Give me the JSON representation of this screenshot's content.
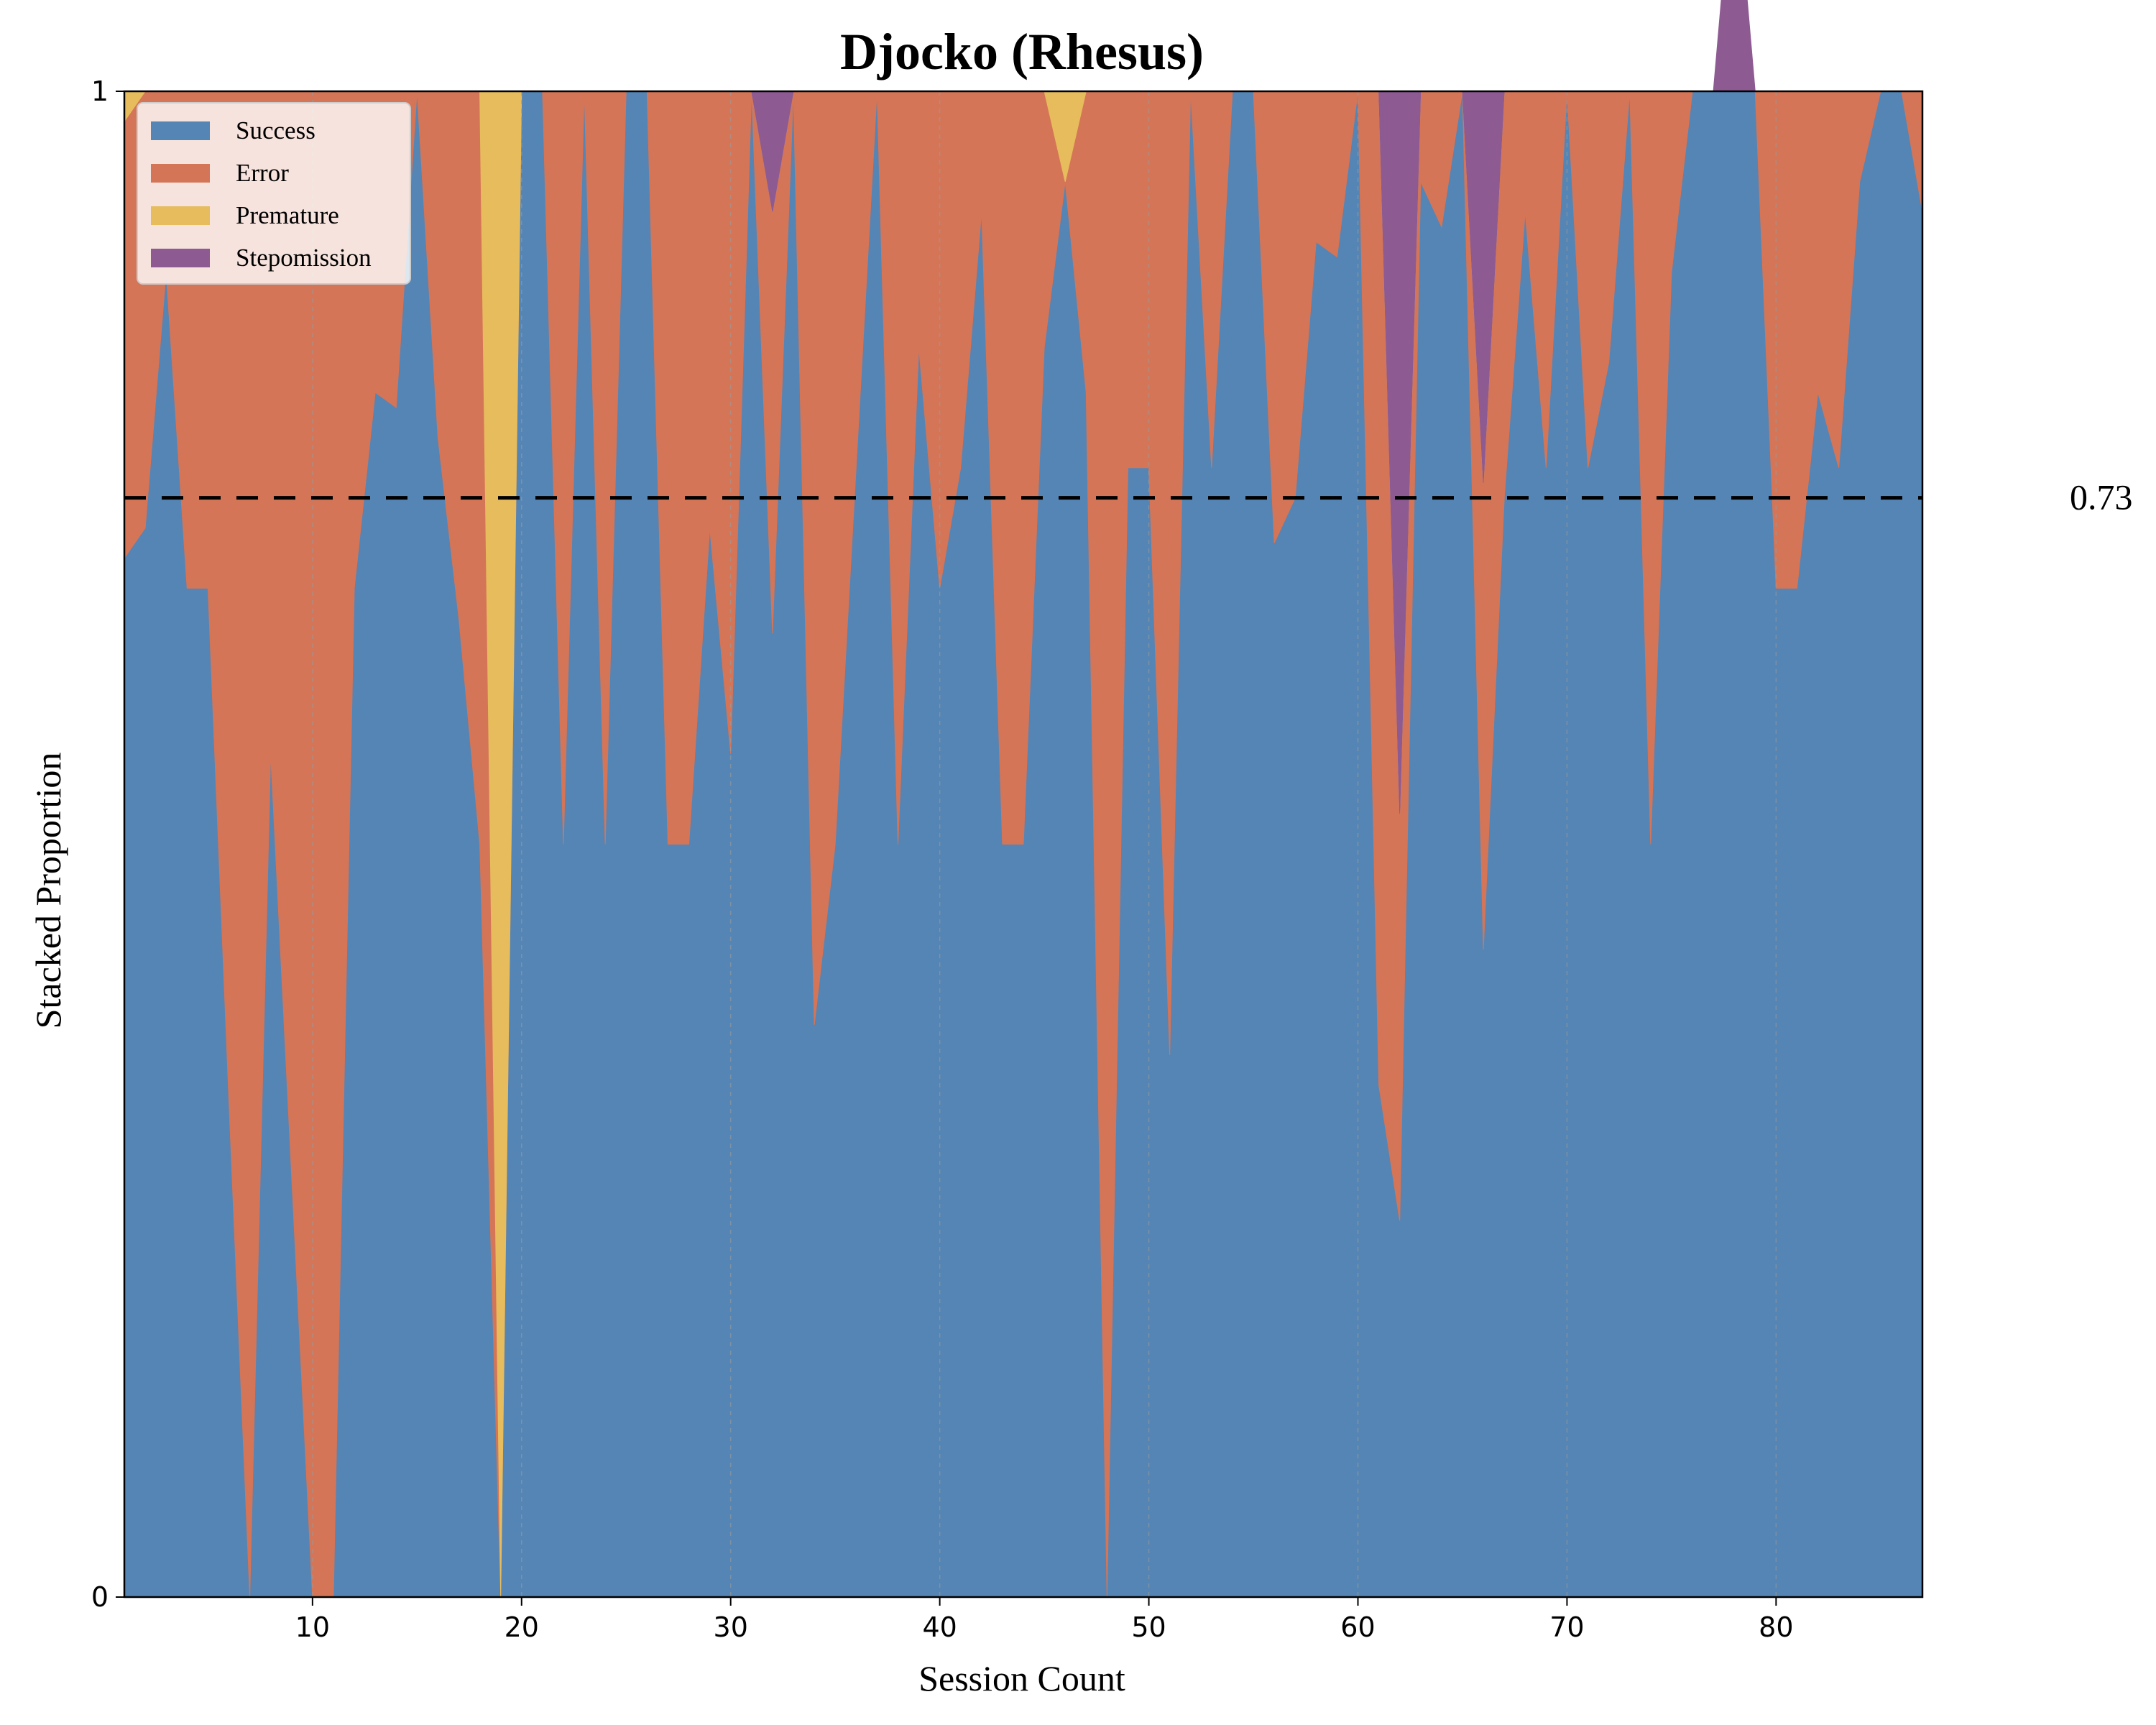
{
  "chart_data": {
    "type": "area",
    "title": "Djocko (Rhesus)",
    "xlabel": "Session Count",
    "ylabel": "Stacked Proportion",
    "xlim": [
      1,
      87
    ],
    "ylim": [
      0,
      1
    ],
    "x_ticks": [
      10,
      20,
      30,
      40,
      50,
      60,
      70,
      80
    ],
    "y_ticks": [
      0,
      1
    ],
    "grid": "vertical dashed",
    "legend_position": "upper-left",
    "reference_line": {
      "y": 0.73,
      "label": "0.73",
      "style": "dashed"
    },
    "x": [
      1,
      2,
      3,
      4,
      5,
      6,
      7,
      8,
      9,
      10,
      11,
      12,
      13,
      14,
      15,
      16,
      17,
      18,
      19,
      20,
      21,
      22,
      23,
      24,
      25,
      26,
      27,
      28,
      29,
      30,
      31,
      32,
      33,
      34,
      35,
      36,
      37,
      38,
      39,
      40,
      41,
      42,
      43,
      44,
      45,
      46,
      47,
      48,
      49,
      50,
      51,
      52,
      53,
      54,
      55,
      56,
      57,
      58,
      59,
      60,
      61,
      62,
      63,
      64,
      65,
      66,
      67,
      68,
      69,
      70,
      71,
      72,
      73,
      74,
      75,
      76,
      77,
      78,
      79,
      80,
      81,
      82,
      83,
      84,
      85,
      86,
      87
    ],
    "series": [
      {
        "name": "Success",
        "color": "#5485b5",
        "values": [
          0.69,
          0.71,
          0.88,
          0.67,
          0.67,
          0.33,
          0.0,
          0.56,
          0.28,
          0.0,
          0.0,
          0.67,
          0.8,
          0.79,
          1.0,
          0.77,
          0.65,
          0.5,
          0.0,
          1.0,
          1.0,
          0.5,
          1.0,
          0.5,
          1.0,
          1.0,
          0.5,
          0.5,
          0.71,
          0.56,
          1.0,
          0.64,
          1.0,
          0.38,
          0.5,
          0.75,
          1.0,
          0.5,
          0.83,
          0.67,
          0.75,
          0.92,
          0.5,
          0.5,
          0.83,
          0.94,
          0.8,
          0.0,
          0.75,
          0.75,
          0.36,
          1.0,
          0.75,
          1.0,
          1.0,
          0.7,
          0.73,
          0.9,
          0.89,
          1.0,
          0.34,
          0.25,
          0.94,
          0.91,
          1.0,
          0.43,
          0.73,
          0.92,
          0.75,
          1.0,
          0.75,
          0.82,
          1.0,
          0.5,
          0.88,
          1.0,
          1.0,
          1.0,
          1.0,
          0.67,
          0.67,
          0.8,
          0.75,
          0.94,
          1.0,
          1.0,
          0.92
        ]
      },
      {
        "name": "Error",
        "color": "#d57557",
        "values": [
          0.29,
          0.29,
          0.12,
          0.33,
          0.33,
          0.67,
          1.0,
          0.44,
          0.72,
          1.0,
          1.0,
          0.33,
          0.2,
          0.21,
          0.0,
          0.23,
          0.35,
          0.5,
          0.0,
          0.0,
          0.0,
          0.5,
          0.0,
          0.5,
          0.0,
          0.0,
          0.5,
          0.5,
          0.29,
          0.44,
          0.0,
          0.28,
          0.0,
          0.62,
          0.5,
          0.25,
          0.0,
          0.5,
          0.17,
          0.33,
          0.25,
          0.08,
          0.5,
          0.5,
          0.17,
          0.0,
          0.2,
          1.0,
          0.25,
          0.25,
          0.64,
          0.0,
          0.25,
          0.0,
          0.0,
          0.3,
          0.27,
          0.1,
          0.11,
          0.0,
          0.66,
          0.27,
          0.06,
          0.09,
          0.0,
          0.31,
          0.27,
          0.08,
          0.25,
          0.0,
          0.25,
          0.18,
          0.0,
          0.5,
          0.12,
          0.0,
          0.0,
          0.0,
          0.0,
          0.33,
          0.33,
          0.2,
          0.25,
          0.06,
          0.0,
          0.0,
          0.08
        ]
      },
      {
        "name": "Premature",
        "color": "#e7bc5d",
        "values": [
          0.02,
          0,
          0,
          0,
          0,
          0,
          0,
          0,
          0,
          0,
          0,
          0,
          0,
          0,
          0,
          0,
          0,
          0,
          1.0,
          0,
          0,
          0,
          0,
          0,
          0,
          0,
          0,
          0,
          0,
          0,
          0,
          0,
          0,
          0,
          0,
          0,
          0,
          0,
          0,
          0,
          0,
          0,
          0,
          0,
          0,
          0.06,
          0,
          0,
          0,
          0,
          0,
          0,
          0,
          0,
          0,
          0,
          0,
          0,
          0,
          0,
          0,
          0,
          0,
          0,
          0,
          0,
          0,
          0,
          0,
          0,
          0,
          0,
          0,
          0,
          0,
          0,
          0,
          0,
          0,
          0,
          0,
          0,
          0,
          0,
          0,
          0,
          0
        ]
      },
      {
        "name": "Stepomission",
        "color": "#8d5a92",
        "values": [
          0,
          0,
          0,
          0,
          0,
          0,
          0,
          0,
          0,
          0,
          0,
          0,
          0,
          0,
          0,
          0,
          0,
          0,
          0,
          0,
          0,
          0,
          0,
          0,
          0,
          0,
          0,
          0,
          0,
          0,
          0,
          0.08,
          0,
          0,
          0,
          0,
          0,
          0,
          0,
          0,
          0,
          0,
          0,
          0,
          0,
          0,
          0,
          0,
          0,
          0,
          0,
          0,
          0,
          0,
          0,
          0,
          0,
          0,
          0,
          0,
          0,
          0.48,
          0,
          0,
          0,
          0.26,
          0,
          0,
          0,
          0,
          0,
          0,
          0,
          0,
          0,
          0,
          0,
          0.16,
          0,
          0,
          0,
          0,
          0,
          0,
          0,
          0,
          0
        ]
      }
    ]
  }
}
